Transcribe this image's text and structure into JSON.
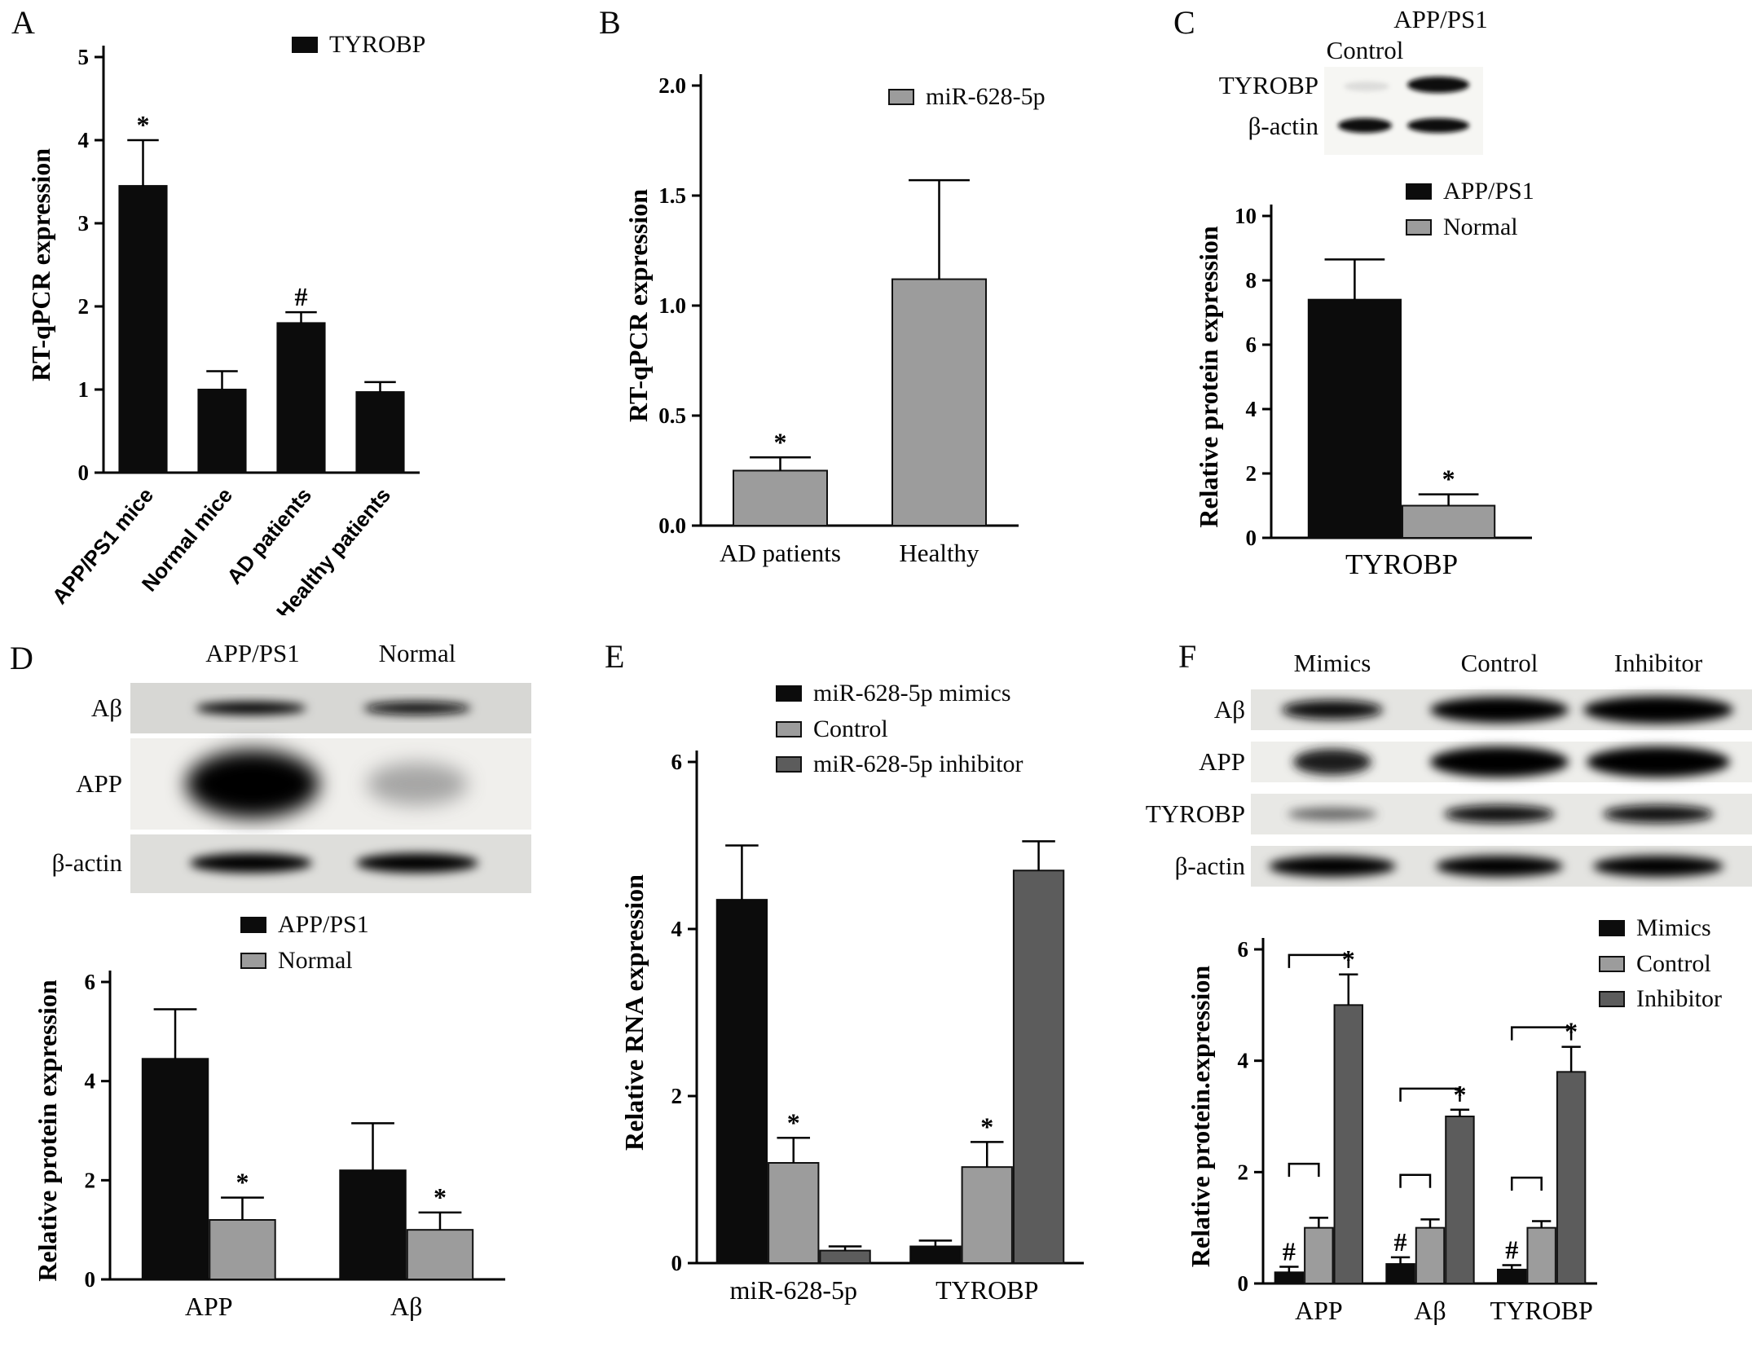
{
  "figure": {
    "background": "#ffffff"
  },
  "panels": {
    "a": {
      "label": "A"
    },
    "b": {
      "label": "B"
    },
    "c": {
      "label": "C",
      "blot": {
        "col_headers": [
          "Control",
          "APP/PS1"
        ],
        "row_labels": [
          "TYROBP",
          "β-actin"
        ]
      }
    },
    "d": {
      "label": "D",
      "blot": {
        "col_headers": [
          "APP/PS1",
          "Normal"
        ],
        "row_labels": [
          "Aβ",
          "APP",
          "β-actin"
        ]
      }
    },
    "e": {
      "label": "E"
    },
    "f": {
      "label": "F",
      "blot": {
        "col_headers": [
          "Mimics",
          "Control",
          "Inhibitor"
        ],
        "row_labels": [
          "Aβ",
          "APP",
          "TYROBP",
          "β-actin"
        ]
      }
    }
  },
  "chart_data": [
    {
      "panel": "A",
      "type": "bar",
      "title": "",
      "xlabel": "",
      "ylabel": "RT-qPCR expression",
      "ylim": [
        0,
        5
      ],
      "yticks": [
        0,
        1,
        2,
        3,
        4,
        5
      ],
      "ytick_labels": [
        "0",
        "1",
        "2",
        "3",
        "4",
        "5"
      ],
      "grid": false,
      "legend_position": "top-right",
      "categories": [
        "APP/PS1 mice",
        "Normal mice",
        "AD patients",
        "Healthy patients"
      ],
      "series": [
        {
          "name": "TYROBP",
          "color": "#0c0c0c",
          "values": [
            3.45,
            1.0,
            1.8,
            0.97
          ],
          "errors": [
            0.55,
            0.22,
            0.13,
            0.12
          ],
          "annotations": [
            "*",
            "",
            "#",
            ""
          ]
        }
      ]
    },
    {
      "panel": "B",
      "type": "bar",
      "title": "",
      "xlabel": "",
      "ylabel": "RT-qPCR expression",
      "ylim": [
        0,
        2
      ],
      "yticks": [
        0,
        0.5,
        1,
        1.5,
        2
      ],
      "ytick_labels": [
        "0.0",
        "0.5",
        "1.0",
        "1.5",
        "2.0"
      ],
      "grid": false,
      "legend_position": "top-right",
      "categories": [
        "AD patients",
        "Healthy"
      ],
      "series": [
        {
          "name": "miR-628-5p",
          "color": "#9c9c9c",
          "border": "#111111",
          "values": [
            0.25,
            1.12
          ],
          "errors": [
            0.06,
            0.45
          ],
          "annotations": [
            "*",
            ""
          ]
        }
      ]
    },
    {
      "panel": "C",
      "type": "bar",
      "title": "",
      "xlabel": "",
      "ylabel": "Relative protein expression",
      "ylim": [
        0,
        10
      ],
      "yticks": [
        0,
        2,
        4,
        6,
        8,
        10
      ],
      "ytick_labels": [
        "0",
        "2",
        "4",
        "6",
        "8",
        "10"
      ],
      "grid": false,
      "legend_position": "top-right",
      "categories": [
        "TYROBP"
      ],
      "series": [
        {
          "name": "APP/PS1",
          "color": "#0c0c0c",
          "values": [
            7.4
          ],
          "errors": [
            1.25
          ],
          "annotations": [
            ""
          ]
        },
        {
          "name": "Normal",
          "color": "#9c9c9c",
          "border": "#111111",
          "values": [
            1.0
          ],
          "errors": [
            0.35
          ],
          "annotations": [
            "*"
          ]
        }
      ]
    },
    {
      "panel": "D",
      "type": "bar",
      "title": "",
      "xlabel": "",
      "ylabel": "Relative protein expression",
      "ylim": [
        0,
        6
      ],
      "yticks": [
        0,
        2,
        4,
        6
      ],
      "ytick_labels": [
        "0",
        "2",
        "4",
        "6"
      ],
      "grid": false,
      "legend_position": "top-center",
      "categories": [
        "APP",
        "Aβ"
      ],
      "series": [
        {
          "name": "APP/PS1",
          "color": "#0c0c0c",
          "values": [
            4.45,
            2.2
          ],
          "errors": [
            1.0,
            0.95
          ],
          "annotations": [
            "",
            ""
          ]
        },
        {
          "name": "Normal",
          "color": "#9c9c9c",
          "border": "#111111",
          "values": [
            1.2,
            1.0
          ],
          "errors": [
            0.45,
            0.35
          ],
          "annotations": [
            "*",
            "*"
          ]
        }
      ]
    },
    {
      "panel": "E",
      "type": "bar",
      "title": "",
      "xlabel": "",
      "ylabel": "Relative RNA expression",
      "ylim": [
        0,
        6
      ],
      "yticks": [
        0,
        2,
        4,
        6
      ],
      "ytick_labels": [
        "0",
        "2",
        "4",
        "6"
      ],
      "grid": false,
      "legend_position": "top-right",
      "categories": [
        "miR-628-5p",
        "TYROBP"
      ],
      "series": [
        {
          "name": "miR-628-5p mimics",
          "color": "#0c0c0c",
          "values": [
            4.35,
            0.2
          ],
          "errors": [
            0.65,
            0.07
          ],
          "annotations": [
            "",
            ""
          ]
        },
        {
          "name": "Control",
          "color": "#9c9c9c",
          "border": "#111111",
          "values": [
            1.2,
            1.15
          ],
          "errors": [
            0.3,
            0.3
          ],
          "annotations": [
            "*",
            "*"
          ]
        },
        {
          "name": "miR-628-5p inhibitor",
          "color": "#5c5c5c",
          "border": "#111111",
          "values": [
            0.15,
            4.7
          ],
          "errors": [
            0.05,
            0.35
          ],
          "annotations": [
            "",
            ""
          ]
        }
      ]
    },
    {
      "panel": "F",
      "type": "bar",
      "title": "",
      "xlabel": "",
      "ylabel": "Relative protein.expression",
      "ylim": [
        0,
        6
      ],
      "yticks": [
        0,
        2,
        4,
        6
      ],
      "ytick_labels": [
        "0",
        "2",
        "4",
        "6"
      ],
      "grid": false,
      "legend_position": "top-right",
      "categories": [
        "APP",
        "Aβ",
        "TYROBP"
      ],
      "series": [
        {
          "name": "Mimics",
          "color": "#0c0c0c",
          "values": [
            0.2,
            0.35,
            0.25
          ],
          "errors": [
            0.1,
            0.12,
            0.08
          ],
          "annotations": [
            "#",
            "#",
            "#"
          ]
        },
        {
          "name": "Control",
          "color": "#9c9c9c",
          "border": "#111111",
          "values": [
            1.0,
            1.0,
            1.0
          ],
          "errors": [
            0.18,
            0.15,
            0.12
          ],
          "annotations": [
            "",
            "",
            ""
          ]
        },
        {
          "name": "Inhibitor",
          "color": "#5c5c5c",
          "border": "#111111",
          "values": [
            5.0,
            3.0,
            3.8
          ],
          "errors": [
            0.55,
            0.12,
            0.45
          ],
          "annotations": [
            "*",
            "*",
            "*"
          ]
        }
      ],
      "brackets": [
        {
          "category": 0,
          "from": 0,
          "to": 1,
          "level": 2.15
        },
        {
          "category": 0,
          "from": 0,
          "to": 2,
          "level": 5.9
        },
        {
          "category": 1,
          "from": 0,
          "to": 1,
          "level": 1.95
        },
        {
          "category": 1,
          "from": 0,
          "to": 2,
          "level": 3.5
        },
        {
          "category": 2,
          "from": 0,
          "to": 1,
          "level": 1.9
        },
        {
          "category": 2,
          "from": 0,
          "to": 2,
          "level": 4.6
        }
      ]
    }
  ]
}
